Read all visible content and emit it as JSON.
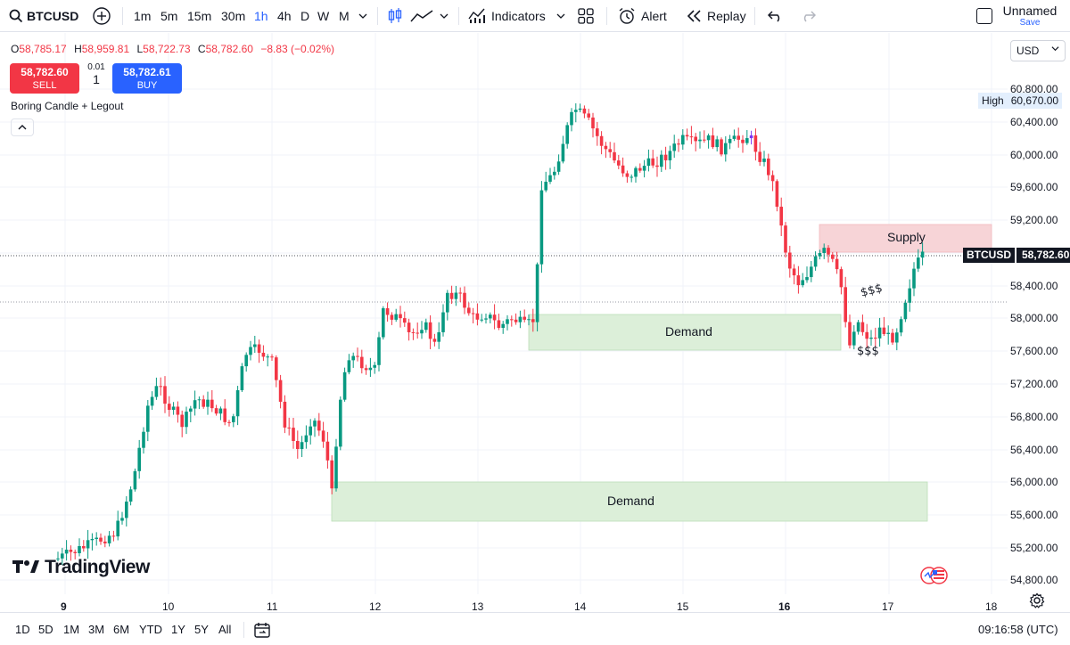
{
  "toolbar": {
    "symbol": "BTCUSD",
    "intervals": [
      {
        "label": "1m",
        "active": false
      },
      {
        "label": "5m",
        "active": false
      },
      {
        "label": "15m",
        "active": false
      },
      {
        "label": "30m",
        "active": false
      },
      {
        "label": "1h",
        "active": true
      },
      {
        "label": "4h",
        "active": false
      },
      {
        "label": "D",
        "active": false
      },
      {
        "label": "W",
        "active": false
      },
      {
        "label": "M",
        "active": false
      }
    ],
    "indicators_label": "Indicators",
    "alert_label": "Alert",
    "replay_label": "Replay",
    "layout_name": "Unnamed",
    "save_label": "Save"
  },
  "legend": {
    "o_key": "O",
    "o_val": "58,785.17",
    "h_key": "H",
    "h_val": "58,959.81",
    "l_key": "L",
    "l_val": "58,722.73",
    "c_key": "C",
    "c_val": "58,782.60",
    "change": "−8.83 (−0.02%)",
    "indicator_name": "Boring Candle + Legout"
  },
  "trade": {
    "sell_price": "58,782.60",
    "sell_label": "SELL",
    "buy_price": "58,782.61",
    "buy_label": "BUY",
    "qty_step": "0.01",
    "qty": "1"
  },
  "price_axis": {
    "currency": "USD",
    "labels": [
      "60,800.00",
      "60,400.00",
      "60,000.00",
      "59,600.00",
      "59,200.00",
      "58,400.00",
      "58,000.00",
      "57,600.00",
      "57,200.00",
      "56,800.00",
      "56,400.00",
      "56,000.00",
      "55,600.00",
      "55,200.00",
      "54,800.00"
    ],
    "high_label": "High",
    "high_value": "60,670.00",
    "last_symbol": "BTCUSD",
    "last_value": "58,782.60"
  },
  "date_axis": [
    "9",
    "10",
    "11",
    "12",
    "13",
    "14",
    "15",
    "16",
    "17",
    "18"
  ],
  "annotations": {
    "supply": "Supply",
    "demand_upper": "Demand",
    "demand_lower": "Demand",
    "dollars_top": "$$$",
    "dollars_bottom": "$$$"
  },
  "branding": "TradingView",
  "bottom": {
    "ranges": [
      "1D",
      "5D",
      "1M",
      "3M",
      "6M",
      "YTD",
      "1Y",
      "5Y",
      "All"
    ],
    "time": "09:16:58 (UTC)"
  },
  "colors": {
    "up": "#089981",
    "down": "#f23645",
    "accent": "#2962ff",
    "supply_zone": "#f7d4d7",
    "demand_zone": "#dcefd9",
    "highlight_candle": "#7b33f5"
  }
}
